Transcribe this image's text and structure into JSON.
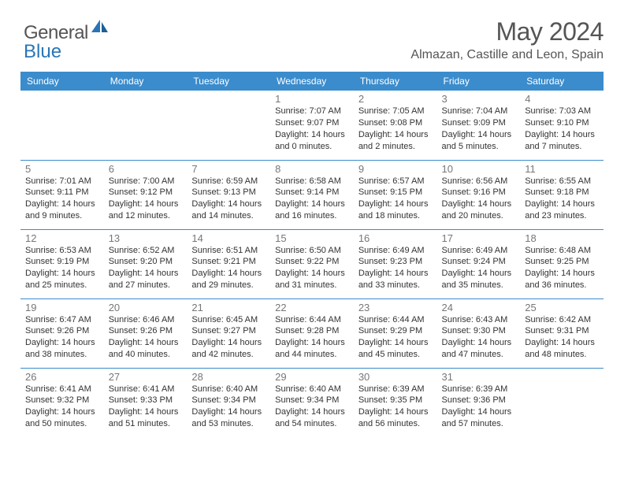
{
  "logo": {
    "general": "General",
    "blue": "Blue"
  },
  "title": "May 2024",
  "location": "Almazan, Castille and Leon, Spain",
  "day_names": [
    "Sunday",
    "Monday",
    "Tuesday",
    "Wednesday",
    "Thursday",
    "Friday",
    "Saturday"
  ],
  "colors": {
    "header_bg": "#3b8ccc",
    "header_text": "#ffffff",
    "rule": "#3b8ccc",
    "page_bg": "#ffffff",
    "text": "#333333",
    "daynum": "#777777",
    "logo_gray": "#555555",
    "logo_blue": "#2876b8"
  },
  "fonts": {
    "title_size_pt": 24,
    "location_size_pt": 12,
    "header_size_pt": 9,
    "daynum_size_pt": 10,
    "body_size_pt": 8.5
  },
  "weeks": [
    [
      null,
      null,
      null,
      {
        "n": "1",
        "sr": "Sunrise: 7:07 AM",
        "ss": "Sunset: 9:07 PM",
        "d1": "Daylight: 14 hours",
        "d2": "and 0 minutes."
      },
      {
        "n": "2",
        "sr": "Sunrise: 7:05 AM",
        "ss": "Sunset: 9:08 PM",
        "d1": "Daylight: 14 hours",
        "d2": "and 2 minutes."
      },
      {
        "n": "3",
        "sr": "Sunrise: 7:04 AM",
        "ss": "Sunset: 9:09 PM",
        "d1": "Daylight: 14 hours",
        "d2": "and 5 minutes."
      },
      {
        "n": "4",
        "sr": "Sunrise: 7:03 AM",
        "ss": "Sunset: 9:10 PM",
        "d1": "Daylight: 14 hours",
        "d2": "and 7 minutes."
      }
    ],
    [
      {
        "n": "5",
        "sr": "Sunrise: 7:01 AM",
        "ss": "Sunset: 9:11 PM",
        "d1": "Daylight: 14 hours",
        "d2": "and 9 minutes."
      },
      {
        "n": "6",
        "sr": "Sunrise: 7:00 AM",
        "ss": "Sunset: 9:12 PM",
        "d1": "Daylight: 14 hours",
        "d2": "and 12 minutes."
      },
      {
        "n": "7",
        "sr": "Sunrise: 6:59 AM",
        "ss": "Sunset: 9:13 PM",
        "d1": "Daylight: 14 hours",
        "d2": "and 14 minutes."
      },
      {
        "n": "8",
        "sr": "Sunrise: 6:58 AM",
        "ss": "Sunset: 9:14 PM",
        "d1": "Daylight: 14 hours",
        "d2": "and 16 minutes."
      },
      {
        "n": "9",
        "sr": "Sunrise: 6:57 AM",
        "ss": "Sunset: 9:15 PM",
        "d1": "Daylight: 14 hours",
        "d2": "and 18 minutes."
      },
      {
        "n": "10",
        "sr": "Sunrise: 6:56 AM",
        "ss": "Sunset: 9:16 PM",
        "d1": "Daylight: 14 hours",
        "d2": "and 20 minutes."
      },
      {
        "n": "11",
        "sr": "Sunrise: 6:55 AM",
        "ss": "Sunset: 9:18 PM",
        "d1": "Daylight: 14 hours",
        "d2": "and 23 minutes."
      }
    ],
    [
      {
        "n": "12",
        "sr": "Sunrise: 6:53 AM",
        "ss": "Sunset: 9:19 PM",
        "d1": "Daylight: 14 hours",
        "d2": "and 25 minutes."
      },
      {
        "n": "13",
        "sr": "Sunrise: 6:52 AM",
        "ss": "Sunset: 9:20 PM",
        "d1": "Daylight: 14 hours",
        "d2": "and 27 minutes."
      },
      {
        "n": "14",
        "sr": "Sunrise: 6:51 AM",
        "ss": "Sunset: 9:21 PM",
        "d1": "Daylight: 14 hours",
        "d2": "and 29 minutes."
      },
      {
        "n": "15",
        "sr": "Sunrise: 6:50 AM",
        "ss": "Sunset: 9:22 PM",
        "d1": "Daylight: 14 hours",
        "d2": "and 31 minutes."
      },
      {
        "n": "16",
        "sr": "Sunrise: 6:49 AM",
        "ss": "Sunset: 9:23 PM",
        "d1": "Daylight: 14 hours",
        "d2": "and 33 minutes."
      },
      {
        "n": "17",
        "sr": "Sunrise: 6:49 AM",
        "ss": "Sunset: 9:24 PM",
        "d1": "Daylight: 14 hours",
        "d2": "and 35 minutes."
      },
      {
        "n": "18",
        "sr": "Sunrise: 6:48 AM",
        "ss": "Sunset: 9:25 PM",
        "d1": "Daylight: 14 hours",
        "d2": "and 36 minutes."
      }
    ],
    [
      {
        "n": "19",
        "sr": "Sunrise: 6:47 AM",
        "ss": "Sunset: 9:26 PM",
        "d1": "Daylight: 14 hours",
        "d2": "and 38 minutes."
      },
      {
        "n": "20",
        "sr": "Sunrise: 6:46 AM",
        "ss": "Sunset: 9:26 PM",
        "d1": "Daylight: 14 hours",
        "d2": "and 40 minutes."
      },
      {
        "n": "21",
        "sr": "Sunrise: 6:45 AM",
        "ss": "Sunset: 9:27 PM",
        "d1": "Daylight: 14 hours",
        "d2": "and 42 minutes."
      },
      {
        "n": "22",
        "sr": "Sunrise: 6:44 AM",
        "ss": "Sunset: 9:28 PM",
        "d1": "Daylight: 14 hours",
        "d2": "and 44 minutes."
      },
      {
        "n": "23",
        "sr": "Sunrise: 6:44 AM",
        "ss": "Sunset: 9:29 PM",
        "d1": "Daylight: 14 hours",
        "d2": "and 45 minutes."
      },
      {
        "n": "24",
        "sr": "Sunrise: 6:43 AM",
        "ss": "Sunset: 9:30 PM",
        "d1": "Daylight: 14 hours",
        "d2": "and 47 minutes."
      },
      {
        "n": "25",
        "sr": "Sunrise: 6:42 AM",
        "ss": "Sunset: 9:31 PM",
        "d1": "Daylight: 14 hours",
        "d2": "and 48 minutes."
      }
    ],
    [
      {
        "n": "26",
        "sr": "Sunrise: 6:41 AM",
        "ss": "Sunset: 9:32 PM",
        "d1": "Daylight: 14 hours",
        "d2": "and 50 minutes."
      },
      {
        "n": "27",
        "sr": "Sunrise: 6:41 AM",
        "ss": "Sunset: 9:33 PM",
        "d1": "Daylight: 14 hours",
        "d2": "and 51 minutes."
      },
      {
        "n": "28",
        "sr": "Sunrise: 6:40 AM",
        "ss": "Sunset: 9:34 PM",
        "d1": "Daylight: 14 hours",
        "d2": "and 53 minutes."
      },
      {
        "n": "29",
        "sr": "Sunrise: 6:40 AM",
        "ss": "Sunset: 9:34 PM",
        "d1": "Daylight: 14 hours",
        "d2": "and 54 minutes."
      },
      {
        "n": "30",
        "sr": "Sunrise: 6:39 AM",
        "ss": "Sunset: 9:35 PM",
        "d1": "Daylight: 14 hours",
        "d2": "and 56 minutes."
      },
      {
        "n": "31",
        "sr": "Sunrise: 6:39 AM",
        "ss": "Sunset: 9:36 PM",
        "d1": "Daylight: 14 hours",
        "d2": "and 57 minutes."
      },
      null
    ]
  ]
}
